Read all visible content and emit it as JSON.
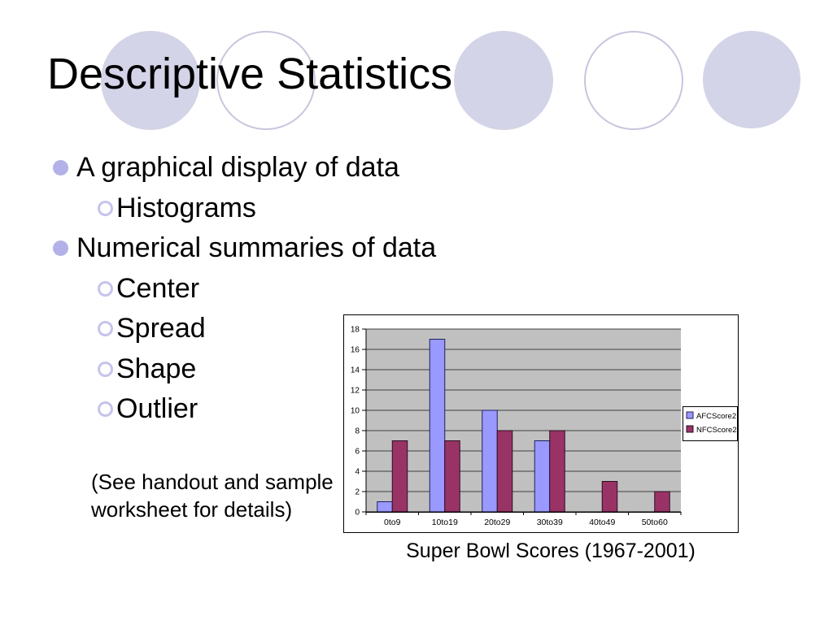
{
  "slide": {
    "title": "Descriptive Statistics",
    "bullets": [
      {
        "level": 1,
        "text": "A graphical display of data"
      },
      {
        "level": 2,
        "text": "Histograms"
      },
      {
        "level": 1,
        "text": "Numerical summaries of data"
      },
      {
        "level": 2,
        "text": "Center"
      },
      {
        "level": 2,
        "text": "Spread"
      },
      {
        "level": 2,
        "text": "Shape"
      },
      {
        "level": 2,
        "text": "Outlier"
      }
    ],
    "note": {
      "line1": "(See handout and sample",
      "line2": "worksheet for details)"
    }
  },
  "colors": {
    "decor_fill": "#d4d4e8",
    "decor_outline": "#c6c6de",
    "bullet_fill": "#b2b2e8",
    "bullet_ring": "#c4c4ec",
    "plot_bg": "#c0c0c0",
    "gridline": "#404040",
    "axis": "#000000",
    "chart_bg": "#ffffff",
    "chart_border": "#000000"
  },
  "chart_data": {
    "type": "bar",
    "title": "Super Bowl Scores (1967-2001)",
    "categories": [
      "0to9",
      "10to19",
      "20to29",
      "30to39",
      "40to49",
      "50to60"
    ],
    "series": [
      {
        "name": "AFCScore2",
        "values": [
          1,
          17,
          10,
          7,
          0,
          0
        ],
        "color": "#9999ff",
        "border": "#20205e"
      },
      {
        "name": "NFCScore2",
        "values": [
          7,
          7,
          8,
          8,
          3,
          2
        ],
        "color": "#993366",
        "border": "#2a0e20"
      }
    ],
    "xlabel": "",
    "ylabel": "",
    "ylim": [
      0,
      18
    ],
    "ytick_step": 2,
    "grid": true,
    "legend_position": "right"
  }
}
